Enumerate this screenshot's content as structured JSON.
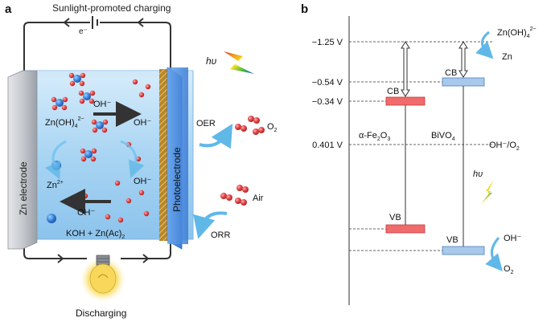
{
  "panel_a": {
    "label": "a",
    "title": "Sunlight-promoted charging",
    "electron": "e⁻",
    "zn_electrode": "Zn electrode",
    "photoelectrode": "Photoelectrode",
    "oh_top_left": "OH⁻",
    "oh_top_right": "OH⁻",
    "zincate_base": "Zn(OH)",
    "zincate_sub": "4",
    "zincate_sup": "2−",
    "zn2": "Zn",
    "zn2_sup": "2+",
    "oh_mid": "OH⁻",
    "oh_bottom": "OH⁻",
    "electrolyte_base": "KOH + Zn(Ac)",
    "electrolyte_sub": "2",
    "hv": "hυ",
    "oer": "OER",
    "o2_base": "O",
    "o2_sub": "2",
    "air": "Air",
    "orr": "ORR",
    "discharging": "Discharging"
  },
  "panel_b": {
    "label": "b",
    "potentials": [
      "−1.25 V",
      "−0.54 V",
      "−0.34 V",
      "0.401 V"
    ],
    "cb_left": "CB",
    "cb_right": "CB",
    "vb_left": "VB",
    "vb_right": "VB",
    "fe2o3_prefix": "α-Fe",
    "fe2o3_sub1": "2",
    "fe2o3_mid": "O",
    "fe2o3_sub2": "3",
    "bivo4_base": "BiVO",
    "bivo4_sub": "4",
    "oh_o2_left": "OH⁻/O",
    "oh_o2_sub": "2",
    "zincate_base": "Zn(OH)",
    "zincate_sub": "4",
    "zincate_sup": "2−",
    "zn": "Zn",
    "oh": "OH⁻",
    "o2_base": "O",
    "o2_sub": "2",
    "hv": "hυ"
  },
  "colors": {
    "cell_blue": "#8ec8ef",
    "photoelectrode_blue": "#4f8fe0",
    "hatch_gold": "#c8962a",
    "zn_electrode": "#c9ccd1",
    "fe2o3_band": "#f06b6b",
    "bivo4_band": "#a8c8ec",
    "arrow_cyan": "#5fb8e8",
    "arrow_dark": "#333333"
  }
}
